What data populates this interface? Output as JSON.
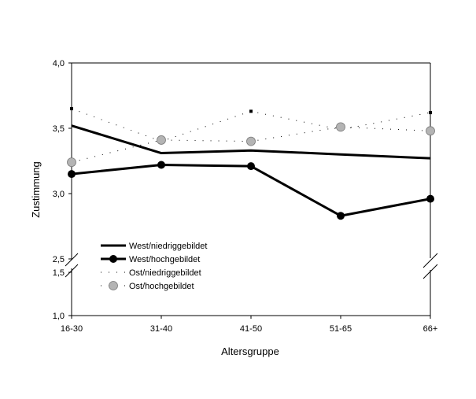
{
  "chart_data": {
    "type": "line",
    "xlabel": "Altersgruppe",
    "ylabel": "Zustimmung",
    "categories": [
      "16-30",
      "31-40",
      "41-50",
      "51-65",
      "66+"
    ],
    "y_ticks": [
      "1,0",
      "1,5",
      "2,5",
      "3,0",
      "3,5",
      "4,0"
    ],
    "y_axis_break": [
      1.5,
      2.5
    ],
    "ylim": [
      1.0,
      4.0
    ],
    "grid": false,
    "legend_position": "lower-left",
    "series": [
      {
        "name": "West/niedriggebildet",
        "style": "thick-line",
        "color": "#000000",
        "values": [
          3.52,
          3.31,
          3.33,
          3.3,
          3.27
        ]
      },
      {
        "name": "West/hochgebildet",
        "style": "line-circle",
        "color": "#000000",
        "values": [
          3.15,
          3.22,
          3.21,
          2.83,
          2.96
        ]
      },
      {
        "name": "Ost/niedriggebildet",
        "style": "dotted-square",
        "color": "#000000",
        "values": [
          3.65,
          3.4,
          3.63,
          3.49,
          3.62
        ]
      },
      {
        "name": "Ost/hochgebildet",
        "style": "dotted-gray-circle",
        "color": "#b4b4b4",
        "values": [
          3.24,
          3.41,
          3.4,
          3.51,
          3.48
        ]
      }
    ]
  }
}
